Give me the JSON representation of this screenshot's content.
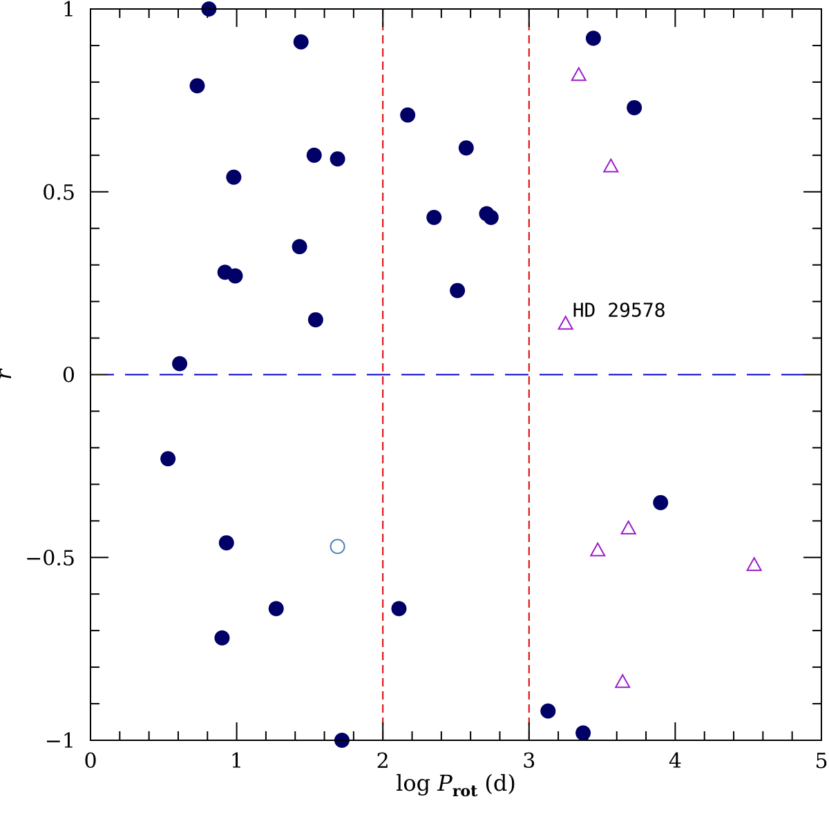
{
  "chart_data": {
    "type": "scatter",
    "xlabel_parts": [
      "log ",
      "P",
      "rot",
      " (d)"
    ],
    "ylabel": "r",
    "xlim": [
      0,
      5
    ],
    "ylim": [
      -1,
      1
    ],
    "x_major_ticks": [
      0,
      1,
      2,
      3,
      4,
      5
    ],
    "x_tick_labels": [
      "0",
      "1",
      "2",
      "3",
      "4",
      "5"
    ],
    "y_major_ticks": [
      -1,
      -0.5,
      0,
      0.5,
      1
    ],
    "y_tick_labels": [
      "−1",
      "−0.5",
      "0",
      "0.5",
      "1"
    ],
    "x_minor_step": 0.2,
    "y_minor_step": 0.1,
    "reference_lines": [
      {
        "orientation": "horizontal",
        "value": 0,
        "color": "#0000cc",
        "style": "long-dash"
      },
      {
        "orientation": "vertical",
        "value": 2,
        "color": "#dd0000",
        "style": "dash"
      },
      {
        "orientation": "vertical",
        "value": 3,
        "color": "#dd0000",
        "style": "dash"
      }
    ],
    "series": [
      {
        "name": "filled circles",
        "marker": "filled-circle",
        "color": "#000066",
        "points": [
          [
            0.81,
            1.0
          ],
          [
            1.44,
            0.91
          ],
          [
            0.73,
            0.79
          ],
          [
            1.53,
            0.6
          ],
          [
            1.69,
            0.59
          ],
          [
            0.98,
            0.54
          ],
          [
            1.43,
            0.35
          ],
          [
            0.92,
            0.28
          ],
          [
            0.99,
            0.27
          ],
          [
            1.54,
            0.15
          ],
          [
            0.61,
            0.03
          ],
          [
            0.53,
            -0.23
          ],
          [
            0.93,
            -0.46
          ],
          [
            1.27,
            -0.64
          ],
          [
            0.9,
            -0.72
          ],
          [
            1.72,
            -1.0
          ],
          [
            2.17,
            0.71
          ],
          [
            2.57,
            0.62
          ],
          [
            2.35,
            0.43
          ],
          [
            2.71,
            0.44
          ],
          [
            2.74,
            0.43
          ],
          [
            2.51,
            0.23
          ],
          [
            2.11,
            -0.64
          ],
          [
            3.44,
            0.92
          ],
          [
            3.72,
            0.73
          ],
          [
            3.9,
            -0.35
          ],
          [
            3.13,
            -0.92
          ],
          [
            3.37,
            -0.98
          ]
        ]
      },
      {
        "name": "open circle",
        "marker": "open-circle",
        "color": "#4a7fb5",
        "points": [
          [
            1.69,
            -0.47
          ]
        ]
      },
      {
        "name": "open triangles",
        "marker": "open-triangle",
        "color": "#9a1cc8",
        "points": [
          [
            3.34,
            0.82
          ],
          [
            3.56,
            0.57
          ],
          [
            3.25,
            0.14
          ],
          [
            3.68,
            -0.42
          ],
          [
            3.47,
            -0.48
          ],
          [
            4.54,
            -0.52
          ],
          [
            3.64,
            -0.84
          ]
        ]
      }
    ],
    "annotations": [
      {
        "text": "HD 29578",
        "x": 3.25,
        "y": 0.14
      }
    ],
    "legend": "none",
    "grid": false
  }
}
